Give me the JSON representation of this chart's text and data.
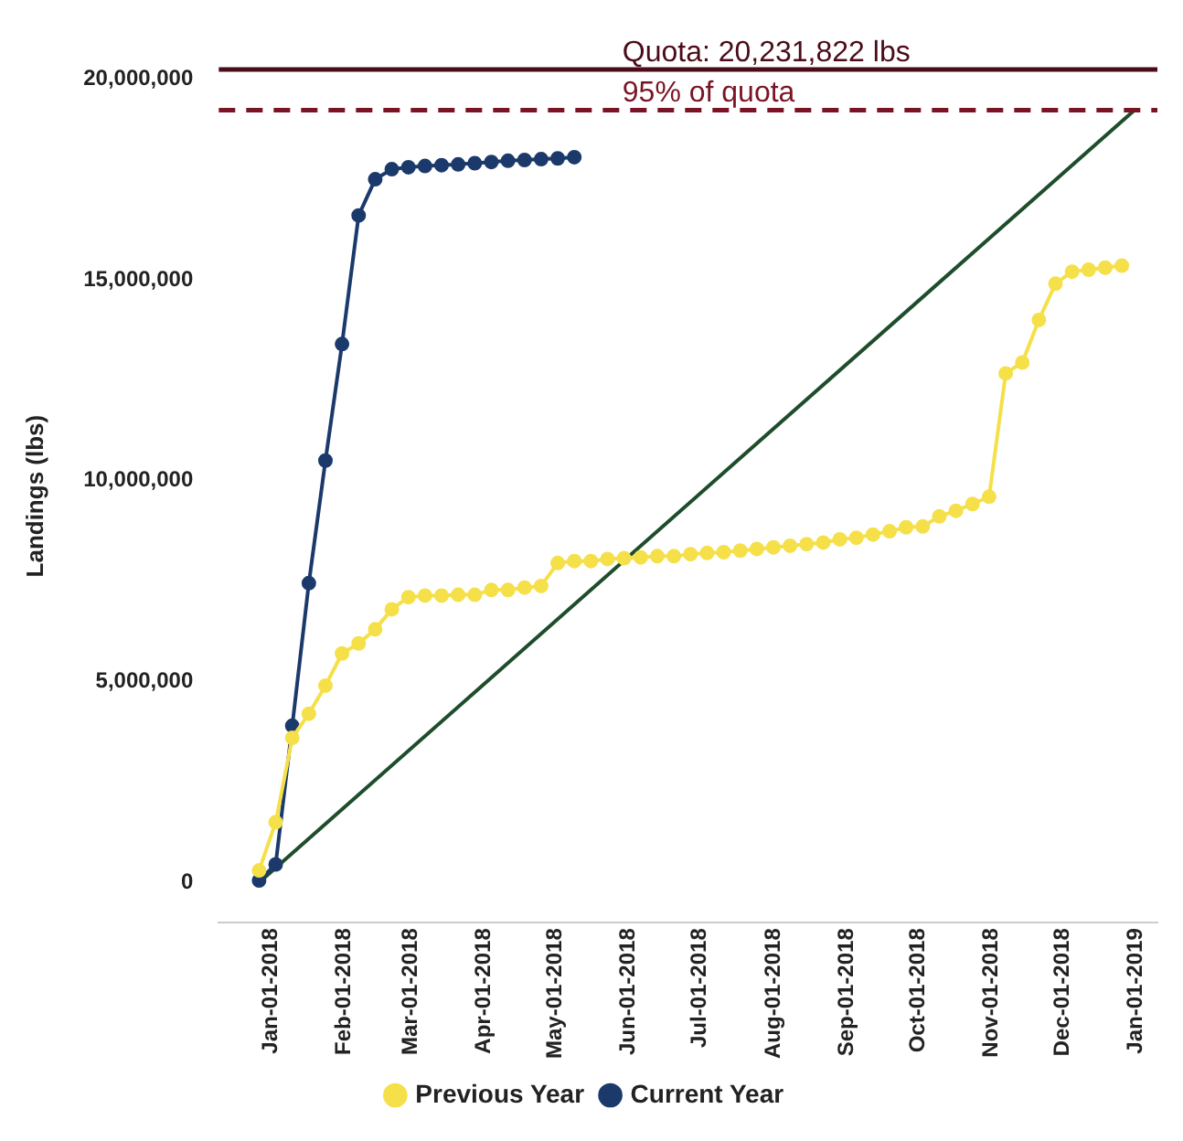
{
  "chart_data": {
    "type": "line",
    "ylabel": "Landings (lbs)",
    "marker": "circle",
    "legend": "bottom",
    "xlim": [
      "2017-12-10",
      "2019-01-10"
    ],
    "xticks": [
      {
        "value": "2018-01-01",
        "label": "Jan-01-2018"
      },
      {
        "value": "2018-02-01",
        "label": "Feb-01-2018"
      },
      {
        "value": "2018-03-01",
        "label": "Mar-01-2018"
      },
      {
        "value": "2018-04-01",
        "label": "Apr-01-2018"
      },
      {
        "value": "2018-05-01",
        "label": "May-01-2018"
      },
      {
        "value": "2018-06-01",
        "label": "Jun-01-2018"
      },
      {
        "value": "2018-07-01",
        "label": "Jul-01-2018"
      },
      {
        "value": "2018-08-01",
        "label": "Aug-01-2018"
      },
      {
        "value": "2018-09-01",
        "label": "Sep-01-2018"
      },
      {
        "value": "2018-10-01",
        "label": "Oct-01-2018"
      },
      {
        "value": "2018-11-01",
        "label": "Nov-01-2018"
      },
      {
        "value": "2018-12-01",
        "label": "Dec-01-2018"
      },
      {
        "value": "2019-01-01",
        "label": "Jan-01-2019"
      }
    ],
    "ylim": [
      -1000000,
      20231822
    ],
    "yticks": [
      {
        "value": 0,
        "label": "0"
      },
      {
        "value": 5000000,
        "label": "5,000,000"
      },
      {
        "value": 10000000,
        "label": "10,000,000"
      },
      {
        "value": 15000000,
        "label": "15,000,000"
      },
      {
        "value": 20000000,
        "label": "20,000,000"
      }
    ],
    "ref_lines": [
      {
        "axis": "y",
        "value": 20231822,
        "label": "Quota: 20,231,822 lbs",
        "color": "#4a0c18",
        "line_style": "solid"
      },
      {
        "axis": "y",
        "value": 19220231,
        "label": "95% of quota",
        "color": "#7a1424",
        "line_style": "dashed"
      }
    ],
    "series": [
      {
        "name": "Previous Year",
        "color": "#f5e04a",
        "x": [
          "2017-12-27",
          "2018-01-03",
          "2018-01-10",
          "2018-01-17",
          "2018-01-24",
          "2018-01-31",
          "2018-02-07",
          "2018-02-14",
          "2018-02-21",
          "2018-02-28",
          "2018-03-07",
          "2018-03-14",
          "2018-03-21",
          "2018-03-28",
          "2018-04-04",
          "2018-04-11",
          "2018-04-18",
          "2018-04-25",
          "2018-05-02",
          "2018-05-09",
          "2018-05-16",
          "2018-05-23",
          "2018-05-30",
          "2018-06-06",
          "2018-06-13",
          "2018-06-20",
          "2018-06-27",
          "2018-07-04",
          "2018-07-11",
          "2018-07-18",
          "2018-07-25",
          "2018-08-01",
          "2018-08-08",
          "2018-08-15",
          "2018-08-22",
          "2018-08-29",
          "2018-09-05",
          "2018-09-12",
          "2018-09-19",
          "2018-09-26",
          "2018-10-03",
          "2018-10-10",
          "2018-10-17",
          "2018-10-24",
          "2018-10-31",
          "2018-11-07",
          "2018-11-14",
          "2018-11-21",
          "2018-11-28",
          "2018-12-05",
          "2018-12-12",
          "2018-12-19",
          "2018-12-26"
        ],
        "values": [
          300000,
          1500000,
          3600000,
          4200000,
          4900000,
          5700000,
          5950000,
          6300000,
          6800000,
          7100000,
          7140000,
          7140000,
          7160000,
          7160000,
          7280000,
          7280000,
          7340000,
          7380000,
          7950000,
          8000000,
          8000000,
          8050000,
          8070000,
          8090000,
          8120000,
          8120000,
          8170000,
          8200000,
          8220000,
          8260000,
          8300000,
          8340000,
          8380000,
          8420000,
          8460000,
          8540000,
          8580000,
          8660000,
          8740000,
          8840000,
          8860000,
          9110000,
          9250000,
          9420000,
          9600000,
          12670000,
          12940000,
          14000000,
          14900000,
          15200000,
          15250000,
          15300000,
          15350000
        ]
      },
      {
        "name": "Current Year",
        "color": "#1b3a6b",
        "x": [
          "2017-12-27",
          "2018-01-03",
          "2018-01-10",
          "2018-01-17",
          "2018-01-24",
          "2018-01-31",
          "2018-02-07",
          "2018-02-14",
          "2018-02-21",
          "2018-02-28",
          "2018-03-07",
          "2018-03-14",
          "2018-03-21",
          "2018-03-28",
          "2018-04-04",
          "2018-04-11",
          "2018-04-18",
          "2018-04-25",
          "2018-05-02",
          "2018-05-09"
        ],
        "values": [
          50000,
          450000,
          3900000,
          7450000,
          10500000,
          13400000,
          16600000,
          17500000,
          17750000,
          17800000,
          17830000,
          17850000,
          17870000,
          17900000,
          17930000,
          17960000,
          17980000,
          18000000,
          18020000,
          18050000
        ]
      },
      {
        "color": "#1e4d2b",
        "marker": "none",
        "x": [
          "2017-12-27",
          "2018-12-31"
        ],
        "values": [
          0,
          19200000
        ]
      }
    ]
  }
}
